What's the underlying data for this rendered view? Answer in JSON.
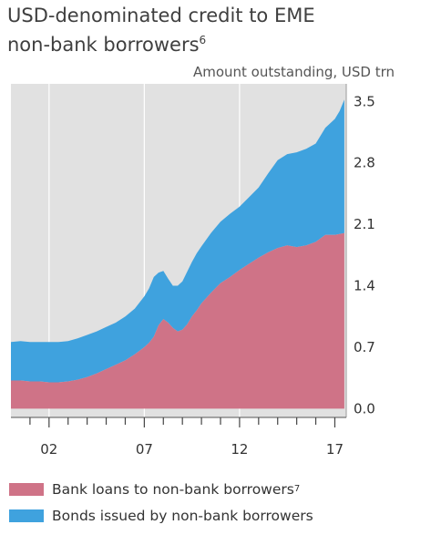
{
  "title_line1": "USD-denominated credit to EME",
  "title_line2": "non-bank borrowers",
  "title_footnote": "6",
  "chart_data": {
    "type": "area",
    "stacked": true,
    "title": "USD-denominated credit to EME non-bank borrowers",
    "subtitle": "Amount outstanding, USD trn",
    "xlabel": "",
    "ylabel": "Amount outstanding, USD trn",
    "x_tick_labels": [
      "02",
      "07",
      "12",
      "17"
    ],
    "y_ticks": [
      "0.0",
      "0.7",
      "1.4",
      "2.1",
      "2.8",
      "3.5"
    ],
    "ylim": [
      -0.1,
      3.7
    ],
    "xlim": [
      2000.0,
      2017.6
    ],
    "grid": true,
    "legend_position": "bottom",
    "x": [
      2000.0,
      2000.5,
      2001.0,
      2001.5,
      2002.0,
      2002.5,
      2003.0,
      2003.5,
      2004.0,
      2004.5,
      2005.0,
      2005.5,
      2006.0,
      2006.5,
      2007.0,
      2007.25,
      2007.5,
      2007.75,
      2008.0,
      2008.25,
      2008.5,
      2008.75,
      2009.0,
      2009.25,
      2009.5,
      2009.75,
      2010.0,
      2010.5,
      2011.0,
      2011.5,
      2012.0,
      2012.5,
      2013.0,
      2013.5,
      2014.0,
      2014.5,
      2015.0,
      2015.5,
      2016.0,
      2016.5,
      2017.0,
      2017.25,
      2017.5
    ],
    "series": [
      {
        "name": "Bank loans to non-bank borrowers",
        "footnote": "7",
        "color": "#cf7387",
        "values": [
          0.32,
          0.32,
          0.31,
          0.31,
          0.3,
          0.3,
          0.31,
          0.33,
          0.36,
          0.4,
          0.45,
          0.5,
          0.55,
          0.62,
          0.7,
          0.75,
          0.82,
          0.95,
          1.02,
          0.98,
          0.92,
          0.88,
          0.9,
          0.96,
          1.05,
          1.12,
          1.2,
          1.32,
          1.43,
          1.5,
          1.58,
          1.65,
          1.72,
          1.78,
          1.83,
          1.86,
          1.84,
          1.86,
          1.9,
          1.98,
          1.98,
          1.99,
          2.0
        ]
      },
      {
        "name": "Bonds issued by non-bank borrowers",
        "color": "#3fa2de",
        "values": [
          0.44,
          0.45,
          0.45,
          0.45,
          0.46,
          0.46,
          0.46,
          0.47,
          0.48,
          0.48,
          0.48,
          0.48,
          0.5,
          0.52,
          0.58,
          0.62,
          0.68,
          0.6,
          0.55,
          0.5,
          0.48,
          0.52,
          0.55,
          0.6,
          0.62,
          0.65,
          0.65,
          0.68,
          0.7,
          0.72,
          0.72,
          0.76,
          0.8,
          0.9,
          1.0,
          1.04,
          1.08,
          1.1,
          1.12,
          1.22,
          1.32,
          1.4,
          1.52
        ]
      }
    ]
  },
  "legend": [
    {
      "label": "Bank loans to non-bank borrowers",
      "footnote": "7",
      "color": "#cf7387"
    },
    {
      "label": "Bonds issued by non-bank borrowers",
      "footnote": "",
      "color": "#3fa2de"
    }
  ]
}
